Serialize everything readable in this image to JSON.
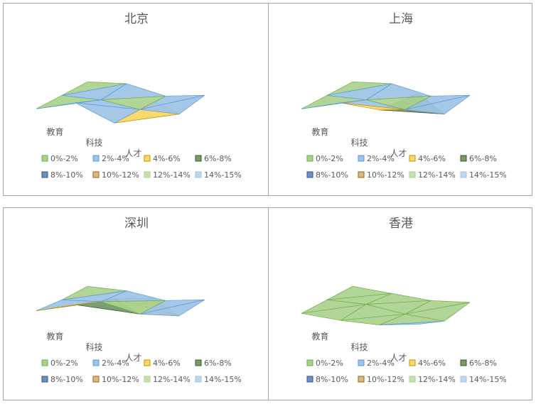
{
  "chart_data": [
    {
      "type": "surface",
      "title": "北京",
      "categories": [
        "教育",
        "科技",
        "人才"
      ],
      "grid": [
        [
          1,
          6,
          1,
          12
        ],
        [
          1,
          2,
          1,
          2
        ],
        [
          1,
          3,
          1,
          4
        ]
      ]
    },
    {
      "type": "surface",
      "title": "上海",
      "categories": [
        "教育",
        "科技",
        "人才"
      ],
      "grid": [
        [
          1,
          6,
          6,
          15
        ],
        [
          1,
          2,
          1,
          2
        ],
        [
          1,
          3,
          1,
          4
        ]
      ]
    },
    {
      "type": "surface",
      "title": "深圳",
      "categories": [
        "教育",
        "科技",
        "人才"
      ],
      "grid": [
        [
          2,
          7,
          12,
          15
        ],
        [
          1,
          3,
          1,
          3
        ],
        [
          1,
          2,
          1,
          4
        ]
      ]
    },
    {
      "type": "surface",
      "title": "香港",
      "categories": [
        "教育",
        "科技",
        "人才"
      ],
      "grid": [
        [
          1,
          1,
          2,
          5
        ],
        [
          1,
          2,
          1,
          1
        ],
        [
          1,
          1,
          1,
          3
        ]
      ]
    }
  ],
  "legend": [
    {
      "label": "0%-2%",
      "color": "#a9d18e",
      "stroke": "#70ad47"
    },
    {
      "label": "2%-4%",
      "color": "#9dc3e6",
      "stroke": "#5b9bd5"
    },
    {
      "label": "4%-6%",
      "color": "#ffd966",
      "stroke": "#bf9000"
    },
    {
      "label": "6%-8%",
      "color": "#7a9a6a",
      "stroke": "#385723"
    },
    {
      "label": "8%-10%",
      "color": "#6f8fbf",
      "stroke": "#2f5597"
    },
    {
      "label": "10%-12%",
      "color": "#d6b98a",
      "stroke": "#9c6500"
    },
    {
      "label": "12%-14%",
      "color": "#c5e0b4",
      "stroke": "#a9d18e"
    },
    {
      "label": "14%-15%",
      "color": "#bdd7ee",
      "stroke": "#9dc3e6"
    }
  ]
}
